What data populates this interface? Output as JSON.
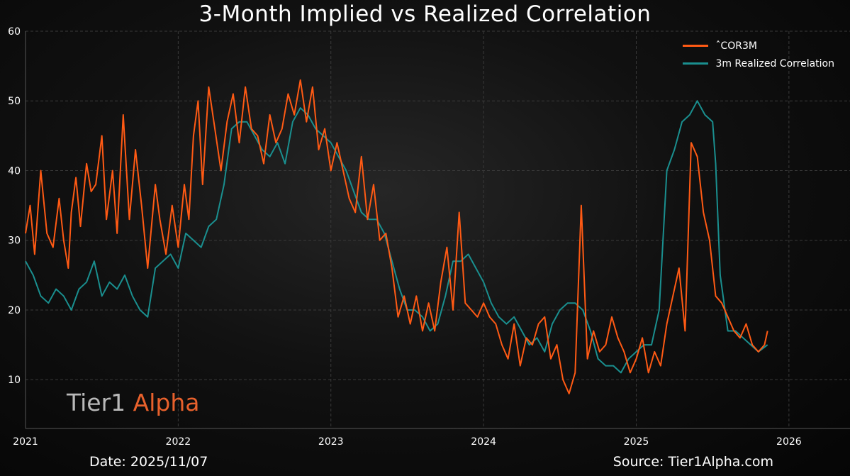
{
  "title": "3-Month Implied vs Realized Correlation",
  "footer": {
    "date": "Date: 2025/11/07",
    "source": "Source: Tier1Alpha.com"
  },
  "logo": {
    "part1": "Tier1",
    "part2": " Alpha"
  },
  "colors": {
    "implied": "#ff5a14",
    "realized": "#1a8f8f",
    "grid": "#3a3a3a"
  },
  "chart_data": {
    "type": "line",
    "title": "3-Month Implied vs Realized Correlation",
    "xlabel": "",
    "ylabel": "",
    "xlim": [
      2021.0,
      2026.4
    ],
    "ylim": [
      3,
      60
    ],
    "x_ticks": [
      2021,
      2022,
      2023,
      2024,
      2025,
      2026
    ],
    "x_tick_labels": [
      "2021",
      "2022",
      "2023",
      "2024",
      "2025",
      "2026"
    ],
    "y_ticks": [
      10,
      20,
      30,
      40,
      50,
      60
    ],
    "y_tick_labels": [
      "10",
      "20",
      "30",
      "40",
      "50",
      "60"
    ],
    "grid": true,
    "legend_position": "top-right",
    "series": [
      {
        "name": "ˆCOR3M",
        "color": "#ff5a14",
        "x": [
          2021.0,
          2021.03,
          2021.06,
          2021.08,
          2021.1,
          2021.14,
          2021.18,
          2021.22,
          2021.25,
          2021.28,
          2021.3,
          2021.33,
          2021.36,
          2021.4,
          2021.43,
          2021.46,
          2021.5,
          2021.53,
          2021.57,
          2021.6,
          2021.64,
          2021.68,
          2021.72,
          2021.76,
          2021.8,
          2021.85,
          2021.88,
          2021.92,
          2021.96,
          2022.0,
          2022.04,
          2022.07,
          2022.1,
          2022.13,
          2022.16,
          2022.2,
          2022.24,
          2022.28,
          2022.32,
          2022.36,
          2022.4,
          2022.44,
          2022.48,
          2022.52,
          2022.56,
          2022.6,
          2022.64,
          2022.68,
          2022.72,
          2022.76,
          2022.8,
          2022.84,
          2022.88,
          2022.92,
          2022.96,
          2023.0,
          2023.04,
          2023.08,
          2023.12,
          2023.16,
          2023.2,
          2023.24,
          2023.28,
          2023.32,
          2023.36,
          2023.4,
          2023.44,
          2023.48,
          2023.52,
          2023.56,
          2023.6,
          2023.64,
          2023.68,
          2023.72,
          2023.76,
          2023.8,
          2023.84,
          2023.88,
          2023.92,
          2023.96,
          2024.0,
          2024.04,
          2024.08,
          2024.12,
          2024.16,
          2024.2,
          2024.24,
          2024.28,
          2024.32,
          2024.36,
          2024.4,
          2024.44,
          2024.48,
          2024.52,
          2024.56,
          2024.6,
          2024.64,
          2024.68,
          2024.72,
          2024.76,
          2024.8,
          2024.84,
          2024.88,
          2024.92,
          2024.96,
          2025.0,
          2025.04,
          2025.08,
          2025.12,
          2025.16,
          2025.2,
          2025.24,
          2025.28,
          2025.32,
          2025.36,
          2025.4,
          2025.44,
          2025.48,
          2025.52,
          2025.56,
          2025.6,
          2025.64,
          2025.68,
          2025.72,
          2025.76,
          2025.8,
          2025.84,
          2025.86
        ],
        "values": [
          31,
          35,
          28,
          34,
          40,
          31,
          29,
          36,
          30,
          26,
          34,
          39,
          32,
          41,
          37,
          38,
          45,
          33,
          40,
          31,
          48,
          33,
          43,
          35,
          26,
          38,
          33,
          28,
          35,
          29,
          38,
          33,
          45,
          50,
          38,
          52,
          46,
          40,
          47,
          51,
          44,
          52,
          46,
          45,
          41,
          48,
          44,
          46,
          51,
          48,
          53,
          47,
          52,
          43,
          46,
          40,
          44,
          40,
          36,
          34,
          42,
          33,
          38,
          30,
          31,
          26,
          19,
          22,
          18,
          22,
          17,
          21,
          17,
          24,
          29,
          20,
          34,
          21,
          20,
          19,
          21,
          19,
          18,
          15,
          13,
          18,
          12,
          16,
          15,
          18,
          19,
          13,
          15,
          10,
          8,
          11,
          35,
          13,
          17,
          14,
          15,
          19,
          16,
          14,
          11,
          13,
          16,
          11,
          14,
          12,
          18,
          22,
          26,
          17,
          44,
          42,
          34,
          30,
          22,
          21,
          19,
          17,
          16,
          18,
          15,
          14,
          15,
          17
        ]
      },
      {
        "name": "3m Realized Correlation",
        "color": "#1a8f8f",
        "x": [
          2021.0,
          2021.05,
          2021.1,
          2021.15,
          2021.2,
          2021.25,
          2021.3,
          2021.35,
          2021.4,
          2021.45,
          2021.5,
          2021.55,
          2021.6,
          2021.65,
          2021.7,
          2021.75,
          2021.8,
          2021.85,
          2021.9,
          2021.95,
          2022.0,
          2022.05,
          2022.1,
          2022.15,
          2022.2,
          2022.25,
          2022.3,
          2022.35,
          2022.4,
          2022.45,
          2022.5,
          2022.55,
          2022.6,
          2022.65,
          2022.7,
          2022.75,
          2022.8,
          2022.85,
          2022.9,
          2022.95,
          2023.0,
          2023.05,
          2023.1,
          2023.15,
          2023.2,
          2023.25,
          2023.3,
          2023.35,
          2023.4,
          2023.45,
          2023.5,
          2023.55,
          2023.6,
          2023.65,
          2023.7,
          2023.75,
          2023.8,
          2023.85,
          2023.9,
          2023.95,
          2024.0,
          2024.05,
          2024.1,
          2024.15,
          2024.2,
          2024.25,
          2024.3,
          2024.35,
          2024.4,
          2024.45,
          2024.5,
          2024.55,
          2024.6,
          2024.65,
          2024.7,
          2024.75,
          2024.8,
          2024.85,
          2024.9,
          2024.95,
          2025.0,
          2025.05,
          2025.1,
          2025.15,
          2025.2,
          2025.25,
          2025.3,
          2025.35,
          2025.4,
          2025.45,
          2025.5,
          2025.52,
          2025.55,
          2025.6,
          2025.65,
          2025.7,
          2025.75,
          2025.8,
          2025.86
        ],
        "values": [
          27,
          25,
          22,
          21,
          23,
          22,
          20,
          23,
          24,
          27,
          22,
          24,
          23,
          25,
          22,
          20,
          19,
          26,
          27,
          28,
          26,
          31,
          30,
          29,
          32,
          33,
          38,
          46,
          47,
          47,
          45,
          43,
          42,
          44,
          41,
          47,
          49,
          48,
          46,
          45,
          44,
          42,
          40,
          37,
          34,
          33,
          33,
          31,
          27,
          23,
          20,
          20,
          19,
          17,
          18,
          22,
          27,
          27,
          28,
          26,
          24,
          21,
          19,
          18,
          19,
          17,
          15,
          16,
          14,
          18,
          20,
          21,
          21,
          20,
          17,
          13,
          12,
          12,
          11,
          13,
          14,
          15,
          15,
          20,
          40,
          43,
          47,
          48,
          50,
          48,
          47,
          41,
          25,
          17,
          17,
          16,
          15,
          14,
          15
        ]
      }
    ]
  }
}
